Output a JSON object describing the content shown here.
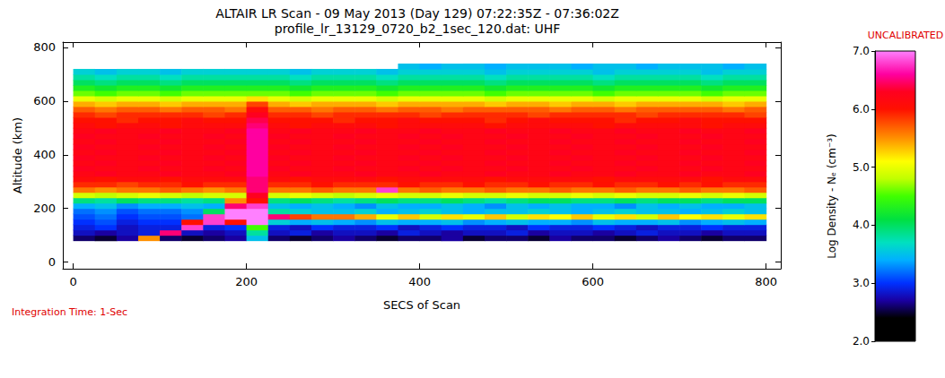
{
  "chart_data": {
    "type": "heatmap",
    "title": "ALTAIR LR Scan - 09 May 2013 (Day 129) 07:22:35Z - 07:36:02Z",
    "subtitle": "profile_lr_13129_0720_b2_1sec_120.dat: UHF",
    "x_label": "SECS of Scan",
    "y_label": "Altitude (km)",
    "annotations": [
      "UNCALIBRATED",
      "Integration Time: 1-Sec"
    ],
    "xlim": [
      -12,
      817
    ],
    "xticks": [
      0,
      200,
      400,
      600,
      800
    ],
    "ylim": [
      -25,
      820
    ],
    "yticks": [
      0,
      200,
      400,
      600,
      800
    ],
    "grid": false,
    "x_bins": [
      0,
      25,
      50,
      75,
      100,
      125,
      150,
      175,
      200,
      225,
      250,
      275,
      300,
      325,
      350,
      375,
      400,
      425,
      450,
      475,
      500,
      525,
      550,
      575,
      600,
      625,
      650,
      675,
      700,
      725,
      750,
      775,
      800
    ],
    "y_bins": [
      80,
      100,
      120,
      140,
      160,
      180,
      200,
      220,
      240,
      260,
      280,
      300,
      320,
      340,
      360,
      380,
      400,
      420,
      440,
      460,
      480,
      500,
      520,
      540,
      560,
      580,
      600,
      620,
      640,
      660,
      680,
      700,
      720,
      740
    ],
    "cells": [
      [
        2.6,
        2.5,
        2.7,
        5.5,
        2.6,
        2.5,
        2.6,
        2.7,
        3.5,
        2.6,
        2.5,
        2.6,
        2.7,
        2.6,
        2.5,
        2.6,
        2.6,
        2.7,
        2.5,
        2.6,
        2.6,
        2.5,
        2.7,
        2.6,
        2.6,
        2.5,
        2.6,
        2.7,
        2.6,
        2.5,
        2.6,
        2.6
      ],
      [
        2.8,
        2.7,
        2.8,
        2.9,
        6.5,
        2.8,
        2.7,
        2.8,
        3.8,
        2.8,
        2.9,
        2.7,
        2.8,
        2.8,
        2.7,
        2.9,
        2.8,
        2.7,
        2.8,
        2.8,
        2.9,
        2.7,
        2.8,
        2.8,
        2.7,
        2.8,
        2.9,
        2.8,
        2.8,
        2.7,
        2.8,
        2.8
      ],
      [
        2.9,
        3.0,
        2.8,
        2.9,
        2.9,
        6.8,
        2.9,
        3.0,
        4.5,
        2.9,
        2.8,
        3.0,
        2.9,
        2.9,
        3.0,
        2.8,
        2.9,
        3.0,
        2.9,
        2.9,
        2.8,
        3.0,
        2.9,
        2.9,
        3.0,
        2.9,
        2.8,
        2.9,
        2.9,
        3.0,
        2.9,
        2.9
      ],
      [
        3.0,
        3.1,
        2.9,
        3.0,
        3.0,
        6.0,
        6.8,
        6.0,
        7.0,
        3.6,
        3.4,
        3.5,
        3.4,
        3.3,
        3.5,
        3.4,
        3.4,
        3.5,
        3.3,
        3.4,
        3.5,
        3.4,
        3.4,
        3.3,
        3.5,
        3.4,
        3.4,
        3.5,
        3.3,
        3.4,
        3.5,
        3.4
      ],
      [
        3.1,
        3.2,
        3.0,
        3.1,
        3.1,
        3.2,
        6.8,
        7.0,
        7.0,
        6.5,
        5.8,
        5.6,
        5.6,
        5.4,
        5.0,
        5.3,
        4.9,
        5.2,
        5.0,
        5.3,
        4.9,
        5.2,
        5.1,
        5.3,
        5.0,
        5.2,
        4.9,
        5.3,
        5.1,
        5.2,
        5.0,
        5.2
      ],
      [
        3.2,
        3.3,
        3.1,
        3.2,
        3.2,
        3.3,
        4.0,
        7.0,
        7.0,
        3.8,
        3.6,
        3.5,
        3.5,
        3.6,
        3.4,
        3.5,
        3.6,
        3.5,
        3.4,
        3.5,
        3.5,
        3.6,
        3.5,
        3.4,
        3.5,
        3.6,
        3.5,
        3.5,
        3.4,
        3.5,
        3.6,
        3.5
      ],
      [
        3.4,
        3.5,
        3.3,
        3.4,
        3.4,
        3.5,
        3.4,
        6.5,
        6.8,
        3.5,
        3.4,
        3.5,
        3.4,
        3.3,
        3.5,
        3.4,
        3.4,
        3.5,
        3.4,
        3.3,
        3.5,
        3.4,
        3.5,
        3.4,
        3.4,
        3.3,
        3.5,
        3.4,
        3.5,
        3.4,
        3.4,
        3.5
      ],
      [
        3.9,
        3.8,
        4.0,
        3.9,
        3.9,
        3.8,
        3.9,
        5.5,
        6.0,
        3.9,
        4.0,
        3.9,
        3.8,
        3.9,
        4.0,
        3.9,
        3.9,
        4.0,
        3.9,
        3.8,
        3.9,
        4.0,
        4.0,
        3.9,
        3.9,
        4.0,
        3.9,
        4.0,
        4.0,
        3.9,
        4.0,
        4.0
      ],
      [
        4.9,
        4.8,
        4.9,
        5.0,
        4.9,
        4.8,
        4.9,
        4.9,
        6.3,
        4.9,
        5.0,
        4.9,
        4.8,
        4.9,
        5.0,
        4.9,
        4.9,
        5.0,
        4.9,
        4.9,
        5.0,
        4.9,
        4.9,
        5.0,
        4.9,
        5.0,
        4.9,
        4.9,
        5.0,
        4.9,
        5.0,
        4.9
      ],
      [
        5.6,
        5.5,
        5.6,
        5.6,
        5.7,
        5.6,
        5.5,
        5.6,
        6.5,
        5.6,
        5.6,
        5.7,
        5.6,
        5.6,
        6.8,
        5.6,
        5.7,
        5.6,
        5.6,
        5.7,
        5.6,
        5.6,
        5.7,
        5.6,
        5.6,
        5.7,
        5.6,
        5.6,
        5.7,
        5.6,
        5.6,
        5.7
      ],
      [
        5.9,
        5.9,
        5.8,
        5.9,
        5.9,
        6.0,
        5.9,
        5.9,
        6.5,
        5.9,
        5.9,
        6.0,
        5.9,
        5.9,
        5.9,
        6.0,
        5.9,
        5.9,
        6.0,
        5.9,
        5.9,
        6.0,
        5.9,
        5.9,
        6.0,
        5.9,
        5.9,
        6.0,
        5.9,
        6.0,
        5.9,
        5.9
      ],
      [
        6.1,
        6.0,
        6.1,
        6.1,
        6.0,
        6.1,
        6.1,
        6.1,
        6.5,
        6.1,
        6.0,
        6.1,
        6.1,
        6.1,
        6.0,
        6.1,
        6.1,
        6.1,
        6.1,
        6.0,
        6.1,
        6.1,
        6.1,
        6.1,
        6.0,
        6.1,
        6.1,
        6.1,
        6.1,
        6.0,
        6.1,
        6.1
      ],
      [
        6.2,
        6.3,
        6.2,
        6.2,
        6.3,
        6.2,
        6.2,
        6.3,
        6.6,
        6.2,
        6.3,
        6.2,
        6.2,
        6.3,
        6.2,
        6.2,
        6.3,
        6.2,
        6.2,
        6.3,
        6.2,
        6.2,
        6.3,
        6.2,
        6.2,
        6.3,
        6.2,
        6.2,
        6.3,
        6.2,
        6.2,
        6.3
      ],
      [
        6.3,
        6.2,
        6.2,
        6.3,
        6.2,
        6.2,
        6.3,
        6.2,
        6.6,
        6.3,
        6.2,
        6.2,
        6.3,
        6.2,
        6.2,
        6.3,
        6.2,
        6.3,
        6.2,
        6.2,
        6.3,
        6.2,
        6.2,
        6.3,
        6.2,
        6.2,
        6.3,
        6.2,
        6.2,
        6.3,
        6.2,
        6.2
      ],
      [
        6.2,
        6.3,
        6.2,
        6.2,
        6.3,
        6.2,
        6.2,
        6.3,
        6.6,
        6.2,
        6.3,
        6.2,
        6.2,
        6.3,
        6.2,
        6.2,
        6.3,
        6.2,
        6.2,
        6.3,
        6.2,
        6.2,
        6.3,
        6.2,
        6.2,
        6.3,
        6.2,
        6.2,
        6.3,
        6.2,
        6.2,
        6.3
      ],
      [
        6.3,
        6.2,
        6.2,
        6.3,
        6.2,
        6.2,
        6.3,
        6.2,
        6.6,
        6.3,
        6.2,
        6.2,
        6.3,
        6.2,
        6.2,
        6.3,
        6.2,
        6.3,
        6.2,
        6.2,
        6.3,
        6.2,
        6.2,
        6.3,
        6.2,
        6.2,
        6.3,
        6.2,
        6.2,
        6.3,
        6.2,
        6.2
      ],
      [
        6.2,
        6.3,
        6.2,
        6.2,
        6.3,
        6.2,
        6.2,
        6.3,
        6.6,
        6.2,
        6.3,
        6.2,
        6.2,
        6.3,
        6.2,
        6.2,
        6.3,
        6.2,
        6.2,
        6.3,
        6.2,
        6.2,
        6.3,
        6.2,
        6.2,
        6.3,
        6.2,
        6.2,
        6.3,
        6.2,
        6.2,
        6.3
      ],
      [
        6.3,
        6.2,
        6.2,
        6.3,
        6.2,
        6.2,
        6.3,
        6.2,
        6.6,
        6.3,
        6.2,
        6.2,
        6.3,
        6.2,
        6.2,
        6.3,
        6.2,
        6.3,
        6.2,
        6.2,
        6.3,
        6.2,
        6.2,
        6.3,
        6.2,
        6.2,
        6.3,
        6.2,
        6.2,
        6.3,
        6.2,
        6.2
      ],
      [
        6.2,
        6.3,
        6.2,
        6.2,
        6.3,
        6.2,
        6.2,
        6.3,
        6.6,
        6.2,
        6.3,
        6.2,
        6.2,
        6.3,
        6.2,
        6.2,
        6.3,
        6.2,
        6.2,
        6.3,
        6.2,
        6.2,
        6.3,
        6.2,
        6.2,
        6.3,
        6.2,
        6.2,
        6.3,
        6.2,
        6.2,
        6.3
      ],
      [
        6.3,
        6.2,
        6.2,
        6.3,
        6.2,
        6.2,
        6.3,
        6.2,
        6.6,
        6.3,
        6.2,
        6.2,
        6.3,
        6.2,
        6.2,
        6.3,
        6.2,
        6.3,
        6.2,
        6.2,
        6.3,
        6.2,
        6.2,
        6.3,
        6.2,
        6.2,
        6.3,
        6.2,
        6.2,
        6.3,
        6.2,
        6.2
      ],
      [
        6.2,
        6.3,
        6.2,
        6.2,
        6.3,
        6.2,
        6.2,
        6.3,
        6.6,
        6.2,
        6.3,
        6.2,
        6.2,
        6.3,
        6.2,
        6.2,
        6.3,
        6.2,
        6.2,
        6.3,
        6.2,
        6.2,
        6.3,
        6.2,
        6.2,
        6.3,
        6.2,
        6.2,
        6.3,
        6.2,
        6.2,
        6.3
      ],
      [
        6.1,
        6.0,
        6.1,
        6.1,
        6.0,
        6.1,
        6.1,
        6.1,
        6.5,
        6.1,
        6.0,
        6.1,
        6.1,
        6.1,
        6.0,
        6.1,
        6.1,
        6.1,
        6.1,
        6.0,
        6.1,
        6.1,
        6.1,
        6.1,
        6.0,
        6.1,
        6.1,
        6.1,
        6.1,
        6.0,
        6.1,
        6.1
      ],
      [
        6.0,
        6.0,
        5.9,
        6.0,
        6.0,
        6.1,
        6.0,
        6.0,
        6.4,
        6.0,
        6.0,
        6.0,
        5.9,
        6.0,
        6.0,
        6.1,
        6.0,
        6.0,
        6.0,
        5.9,
        6.0,
        6.1,
        6.0,
        6.0,
        6.0,
        5.9,
        6.0,
        6.0,
        6.1,
        6.0,
        6.0,
        6.0
      ],
      [
        5.9,
        5.8,
        5.9,
        5.9,
        5.9,
        5.9,
        5.8,
        5.9,
        6.3,
        5.9,
        5.9,
        5.8,
        5.9,
        5.9,
        5.9,
        5.9,
        5.8,
        5.9,
        5.9,
        5.9,
        5.9,
        5.8,
        5.9,
        5.9,
        5.9,
        5.9,
        5.8,
        5.9,
        5.9,
        5.9,
        5.9,
        5.8
      ],
      [
        5.7,
        5.6,
        5.7,
        5.7,
        5.6,
        5.7,
        5.7,
        5.6,
        6.1,
        5.7,
        5.7,
        5.6,
        5.7,
        5.7,
        5.6,
        5.7,
        5.7,
        5.6,
        5.7,
        5.7,
        5.7,
        5.7,
        5.6,
        5.7,
        5.7,
        5.6,
        5.7,
        5.7,
        5.7,
        5.7,
        5.6,
        5.7
      ],
      [
        5.4,
        5.3,
        5.4,
        5.4,
        5.3,
        5.4,
        5.4,
        5.4,
        5.8,
        5.4,
        5.3,
        5.4,
        5.4,
        5.4,
        5.3,
        5.4,
        5.4,
        5.4,
        5.4,
        5.3,
        5.4,
        5.4,
        5.3,
        5.4,
        5.4,
        5.3,
        5.4,
        5.4,
        5.4,
        5.4,
        5.3,
        5.4
      ],
      [
        5.0,
        4.9,
        5.0,
        5.0,
        4.9,
        5.0,
        5.0,
        5.0,
        5.2,
        5.0,
        4.9,
        5.0,
        5.0,
        5.0,
        4.9,
        5.0,
        5.0,
        5.0,
        5.0,
        4.9,
        5.0,
        5.0,
        5.0,
        5.0,
        4.9,
        5.0,
        5.0,
        5.0,
        5.0,
        4.9,
        5.0,
        5.0
      ],
      [
        4.6,
        4.5,
        4.6,
        4.6,
        4.5,
        4.6,
        4.6,
        4.6,
        4.6,
        4.6,
        4.5,
        4.6,
        4.6,
        4.6,
        4.5,
        4.6,
        4.6,
        4.6,
        4.6,
        4.5,
        4.6,
        4.6,
        4.6,
        4.6,
        4.5,
        4.6,
        4.6,
        4.6,
        4.6,
        4.5,
        4.6,
        4.6
      ],
      [
        4.3,
        4.2,
        4.3,
        4.3,
        4.2,
        4.3,
        4.3,
        4.3,
        4.3,
        4.3,
        4.2,
        4.3,
        4.3,
        4.3,
        4.2,
        4.3,
        4.3,
        4.3,
        4.3,
        4.2,
        4.3,
        4.3,
        4.3,
        4.3,
        4.2,
        4.3,
        4.3,
        4.3,
        4.3,
        4.2,
        4.3,
        4.3
      ],
      [
        4.0,
        3.9,
        4.0,
        4.0,
        3.9,
        4.0,
        4.0,
        4.0,
        4.0,
        4.0,
        3.9,
        4.0,
        4.0,
        4.0,
        3.9,
        4.0,
        4.0,
        4.0,
        4.0,
        3.9,
        4.0,
        4.0,
        4.0,
        4.0,
        3.9,
        4.0,
        4.0,
        4.0,
        4.0,
        3.9,
        4.0,
        4.0
      ],
      [
        3.8,
        3.7,
        3.8,
        3.8,
        3.7,
        3.8,
        3.8,
        3.8,
        3.8,
        3.8,
        3.7,
        3.8,
        3.8,
        3.8,
        3.7,
        3.8,
        3.8,
        3.8,
        3.8,
        3.7,
        3.8,
        3.8,
        3.8,
        3.8,
        3.7,
        3.8,
        3.8,
        3.8,
        3.8,
        3.7,
        3.8,
        3.8
      ],
      [
        3.6,
        3.5,
        3.6,
        3.6,
        3.5,
        3.6,
        3.6,
        3.6,
        3.6,
        3.6,
        3.5,
        3.6,
        3.6,
        3.6,
        3.5,
        3.6,
        3.6,
        3.6,
        3.6,
        3.5,
        3.6,
        3.6,
        3.6,
        3.6,
        3.5,
        3.6,
        3.6,
        3.6,
        3.6,
        3.5,
        3.6,
        3.6
      ],
      [
        null,
        null,
        null,
        null,
        null,
        null,
        null,
        null,
        null,
        null,
        null,
        null,
        null,
        null,
        null,
        3.5,
        3.4,
        3.5,
        3.5,
        3.4,
        3.5,
        3.5,
        3.5,
        3.4,
        3.5,
        3.5,
        3.4,
        3.5,
        3.5,
        3.5,
        3.4,
        3.5
      ]
    ],
    "colorbar": {
      "label": "Log Density - Nₑ (cm⁻³)",
      "range": [
        2,
        7
      ],
      "ticks": [
        {
          "value": 2,
          "label": "2.0"
        },
        {
          "value": 3,
          "label": "3.0"
        },
        {
          "value": 4,
          "label": "4.0"
        },
        {
          "value": 5,
          "label": "5.0"
        },
        {
          "value": 6,
          "label": "6.0"
        },
        {
          "value": 7,
          "label": "7.0"
        }
      ]
    }
  }
}
